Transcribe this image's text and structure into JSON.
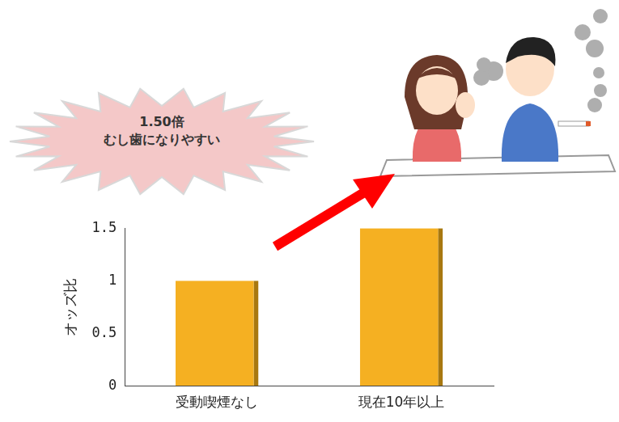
{
  "chart_data": {
    "type": "bar",
    "categories": [
      "受動喫煙なし",
      "現在10年以上"
    ],
    "values": [
      1.0,
      1.5
    ],
    "color": "#f5b022",
    "y_label": "オッズ比",
    "ylim": [
      0,
      1.5
    ],
    "yticks": [
      0,
      0.5,
      1,
      1.5
    ],
    "grid": false,
    "annotations": [
      "1.50倍",
      "むし歯になりやすい"
    ]
  }
}
